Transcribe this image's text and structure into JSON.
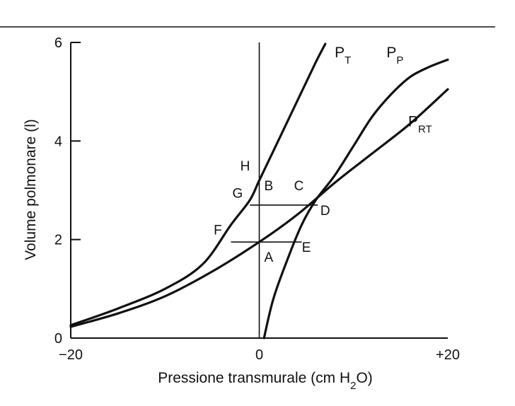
{
  "chart_data": {
    "type": "line",
    "xlabel_main": "Pressione transmurale (cm H",
    "xlabel_sub": "2",
    "xlabel_end": "O)",
    "ylabel": "Volume polmonare (l)",
    "xlim": [
      -20,
      20
    ],
    "ylim": [
      0,
      6
    ],
    "grid": false,
    "x_ticks": [
      {
        "value": -20,
        "label": "−20"
      },
      {
        "value": 0,
        "label": "0"
      },
      {
        "value": 20,
        "label": "+20"
      }
    ],
    "y_ticks": [
      {
        "value": 0,
        "label": "0"
      },
      {
        "value": 2,
        "label": "2"
      },
      {
        "value": 4,
        "label": "4"
      },
      {
        "value": 6,
        "label": "6"
      }
    ],
    "series": [
      {
        "id": "pt",
        "name_main": "P",
        "name_sub": "T",
        "label_at": [
          8.0,
          5.7
        ],
        "points": [
          [
            -20,
            0.26
          ],
          [
            -15,
            0.6
          ],
          [
            -10,
            1.0
          ],
          [
            -6,
            1.5
          ],
          [
            -3,
            2.3
          ],
          [
            -1,
            2.8
          ],
          [
            0,
            3.2
          ],
          [
            2,
            4.0
          ],
          [
            4,
            4.8
          ],
          [
            6,
            5.6
          ],
          [
            7,
            5.97
          ]
        ]
      },
      {
        "id": "pp",
        "name_main": "P",
        "name_sub": "P",
        "label_at": [
          13.5,
          5.7
        ],
        "points": [
          [
            0.5,
            0.0
          ],
          [
            1.5,
            0.8
          ],
          [
            3,
            1.6
          ],
          [
            4.5,
            2.3
          ],
          [
            6,
            2.8
          ],
          [
            8,
            3.3
          ],
          [
            10,
            3.9
          ],
          [
            12,
            4.5
          ],
          [
            14,
            4.95
          ],
          [
            16,
            5.3
          ],
          [
            18,
            5.5
          ],
          [
            20,
            5.65
          ]
        ]
      },
      {
        "id": "prt",
        "name_main": "P",
        "name_sub": "RT",
        "label_at": [
          15.8,
          4.3
        ],
        "points": [
          [
            -20,
            0.23
          ],
          [
            -15,
            0.5
          ],
          [
            -10,
            0.85
          ],
          [
            -5,
            1.35
          ],
          [
            0,
            1.95
          ],
          [
            4,
            2.5
          ],
          [
            8,
            3.15
          ],
          [
            12,
            3.75
          ],
          [
            16,
            4.35
          ],
          [
            20,
            5.05
          ]
        ]
      }
    ],
    "segments": [
      {
        "id": "segment-fe",
        "from": [
          -3.0,
          1.95
        ],
        "to": [
          4.5,
          1.95
        ]
      },
      {
        "id": "segment-gd",
        "from": [
          -1.0,
          2.7
        ],
        "to": [
          6.2,
          2.7
        ]
      }
    ],
    "point_labels": [
      {
        "id": "point-h",
        "text": "H",
        "at": [
          -1.5,
          3.4
        ]
      },
      {
        "id": "point-g",
        "text": "G",
        "at": [
          -2.3,
          2.85
        ]
      },
      {
        "id": "point-b",
        "text": "B",
        "at": [
          1.0,
          3.0
        ]
      },
      {
        "id": "point-c",
        "text": "C",
        "at": [
          4.2,
          3.0
        ]
      },
      {
        "id": "point-d",
        "text": "D",
        "at": [
          7.0,
          2.5
        ]
      },
      {
        "id": "point-f",
        "text": "F",
        "at": [
          -4.4,
          2.1
        ]
      },
      {
        "id": "point-a",
        "text": "A",
        "at": [
          1.0,
          1.55
        ]
      },
      {
        "id": "point-e",
        "text": "E",
        "at": [
          5.0,
          1.75
        ]
      }
    ],
    "colors": {
      "line": "#111111",
      "background": "#ffffff"
    }
  }
}
